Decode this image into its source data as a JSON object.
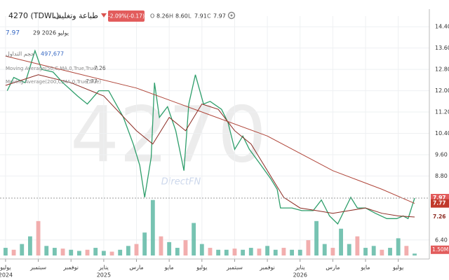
{
  "header": {
    "symbol": "4270 (TDWL)",
    "name": "طباعة وتغليف",
    "change": "-2.09%(-0.17)",
    "ohlc": [
      {
        "label": "O",
        "value": "8.26"
      },
      {
        "label": "H",
        "value": "8.60"
      },
      {
        "label": "L",
        "value": "7.91"
      },
      {
        "label": "C",
        "value": "7.97"
      }
    ]
  },
  "info": {
    "last": "7.97",
    "date": "29 يوليو 2026"
  },
  "watermark": {
    "symbol": "4270",
    "brand": "DirectFN"
  },
  "chart_data": {
    "type": "line",
    "xlim": [
      -0.34,
      25.9
    ],
    "ylim": [
      6.0,
      14.8
    ],
    "xticks": [
      {
        "value": 0,
        "label": "يوليو"
      },
      {
        "value": 2,
        "label": "سبتمبر"
      },
      {
        "value": 4,
        "label": "نوفمبر"
      },
      {
        "value": 6,
        "label": "يناير"
      },
      {
        "value": 8,
        "label": "مارس"
      },
      {
        "value": 10,
        "label": "مايو"
      },
      {
        "value": 12,
        "label": "يوليو"
      },
      {
        "value": 14,
        "label": "سبتمبر"
      },
      {
        "value": 16,
        "label": "نوفمبر"
      },
      {
        "value": 18,
        "label": "يناير"
      },
      {
        "value": 20,
        "label": "مارس"
      },
      {
        "value": 22,
        "label": "مايو"
      },
      {
        "value": 24,
        "label": "يوليو"
      }
    ],
    "xtick_years": [
      "2024",
      null,
      null,
      "2025",
      null,
      null,
      null,
      null,
      null,
      "2026",
      null,
      null,
      null
    ],
    "yticks": [
      {
        "value": 14.4,
        "label": "14.40"
      },
      {
        "value": 13.6,
        "label": "13.60"
      },
      {
        "value": 12.8,
        "label": "12.80"
      },
      {
        "value": 12.0,
        "label": "12.00"
      },
      {
        "value": 11.2,
        "label": "11.20"
      },
      {
        "value": 10.4,
        "label": "10.40"
      },
      {
        "value": 9.6,
        "label": "9.60"
      },
      {
        "value": 8.8,
        "label": "8.80"
      },
      {
        "value": 6.4,
        "label": "6.40"
      }
    ],
    "grid": true,
    "series": [
      {
        "color": "#2e9e6b",
        "x": [
          0.1,
          0.5,
          1.2,
          1.8,
          2.2,
          2.9,
          3.5,
          4.4,
          5.0,
          5.7,
          6.3,
          7.2,
          7.8,
          8.2,
          8.5,
          8.9,
          9.1,
          9.4,
          9.9,
          10.4,
          10.9,
          11.2,
          11.6,
          12.1,
          12.5,
          13.2,
          13.6,
          14.0,
          14.5,
          14.9,
          15.5,
          16.2,
          16.6,
          16.8,
          17.5,
          18.1,
          18.8,
          19.3,
          19.8,
          20.3,
          20.7,
          21.1,
          21.5,
          22.0,
          22.6,
          23.3,
          23.9,
          24.3,
          24.6,
          25.0
        ],
        "values": [
          12.0,
          12.5,
          12.3,
          13.5,
          12.8,
          12.7,
          12.3,
          11.8,
          11.5,
          12.0,
          12.0,
          11.0,
          10.0,
          9.2,
          8.0,
          9.5,
          12.3,
          11.0,
          11.4,
          10.5,
          9.0,
          11.5,
          12.6,
          11.5,
          11.6,
          11.3,
          10.8,
          9.8,
          10.3,
          9.8,
          9.3,
          8.7,
          8.3,
          7.6,
          7.6,
          7.5,
          7.5,
          7.9,
          7.3,
          7.0,
          7.5,
          8.0,
          7.6,
          7.6,
          7.4,
          7.2,
          7.2,
          7.3,
          7.2,
          7.97
        ]
      },
      {
        "name": "Moving Average(50,C,MA,0,True,True)",
        "color": "#8b2a22",
        "x": [
          0,
          2,
          4,
          6,
          8,
          9,
          10,
          11,
          12,
          13,
          14,
          15,
          16,
          17,
          18,
          19,
          20,
          21,
          22,
          23,
          24,
          25
        ],
        "values": [
          12.2,
          12.6,
          12.3,
          11.8,
          10.5,
          10.0,
          11.0,
          10.5,
          11.5,
          11.3,
          10.5,
          10.0,
          9.0,
          8.0,
          7.6,
          7.5,
          7.4,
          7.5,
          7.6,
          7.4,
          7.3,
          7.26
        ]
      },
      {
        "name": "Moving Average(200,C,MA,0,True,True)",
        "color": "#b0463a",
        "x": [
          0,
          4,
          8,
          12,
          16,
          20,
          23,
          25
        ],
        "values": [
          13.3,
          12.7,
          12.1,
          11.2,
          10.3,
          9.0,
          8.3,
          7.77
        ]
      }
    ],
    "volume": {
      "name": "حجم التداول",
      "color": "#5fb8a4",
      "ylim": [
        0,
        15000000
      ],
      "yticks": [
        {
          "value": 1500000,
          "label": "1.50M"
        }
      ],
      "x": [
        0,
        0.5,
        1,
        1.5,
        2,
        2.5,
        3,
        3.5,
        4,
        4.5,
        5,
        5.5,
        6,
        6.5,
        7,
        7.5,
        8,
        8.5,
        9,
        9.5,
        10,
        10.5,
        11,
        11.5,
        12,
        12.5,
        13,
        13.5,
        14,
        14.5,
        15,
        15.5,
        16,
        16.5,
        17,
        17.5,
        18,
        18.5,
        19,
        19.5,
        20,
        20.5,
        21,
        21.5,
        22,
        22.5,
        23,
        23.5,
        24,
        24.5,
        25
      ],
      "values": [
        2000000,
        1500000,
        3000000,
        5000000,
        9000000,
        2500000,
        2000000,
        1800000,
        1500000,
        1200000,
        1500000,
        2000000,
        1200000,
        1000000,
        1500000,
        2500000,
        3000000,
        6000000,
        14500000,
        5000000,
        3500000,
        2000000,
        4000000,
        8500000,
        3000000,
        2000000,
        1500000,
        1500000,
        1800000,
        1500000,
        2000000,
        1800000,
        2500000,
        1500000,
        2000000,
        1500000,
        1500000,
        4000000,
        9000000,
        3000000,
        2000000,
        7000000,
        3000000,
        5000000,
        2000000,
        2500000,
        1500000,
        2000000,
        4500000,
        2500000,
        497677
      ],
      "value_labels": [
        null,
        null,
        null,
        null,
        null,
        null,
        null,
        null,
        null,
        null,
        null,
        null,
        null,
        null,
        null,
        null,
        null,
        null,
        null,
        null,
        null,
        null,
        null,
        null,
        null,
        null,
        null,
        null,
        null,
        null,
        null,
        null,
        null,
        null,
        null,
        null,
        null,
        null,
        null,
        null,
        null,
        null,
        null,
        null,
        null,
        null,
        null,
        null,
        null,
        null,
        "497,677"
      ]
    }
  }
}
